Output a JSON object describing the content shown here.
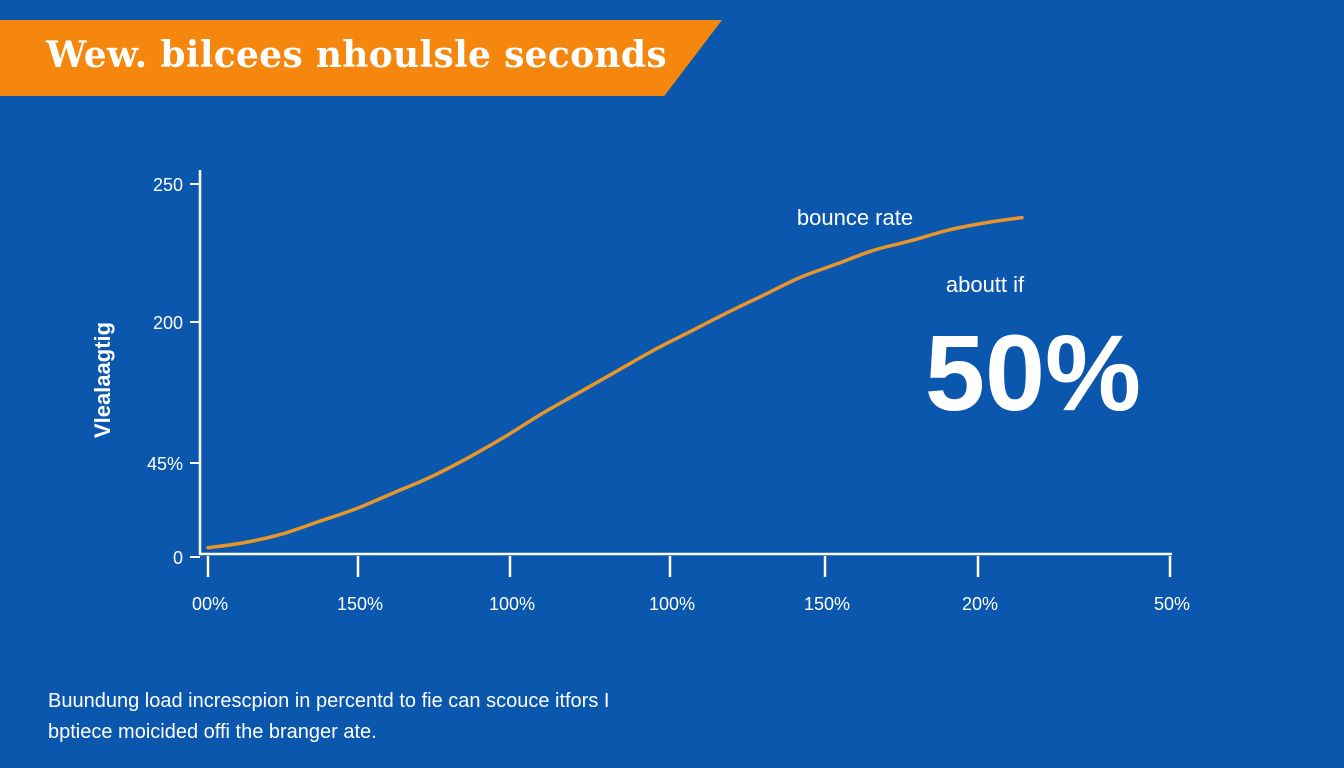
{
  "banner": {
    "title": "Wew. bilcees nhoulsle seconds",
    "color": "#f5870f"
  },
  "caption": {
    "line1": "Buundung load increscpion in percentd to fie can scouce itfors I",
    "line2": "bptiece moicided offi the branger ate."
  },
  "chart_data": {
    "type": "line",
    "title": "Wew. bilcees nhoulsle seconds",
    "xlabel": "",
    "ylabel": "Vlealaagtig",
    "x_tick_labels": [
      "00%",
      "150%",
      "100%",
      "100%",
      "150%",
      "20%",
      "50%"
    ],
    "y_tick_labels": [
      "0",
      "45%",
      "200",
      "250"
    ],
    "grid": false,
    "background_color": "#0a57ad",
    "series": [
      {
        "name": "bounce rate",
        "color": "#e8962a",
        "x": [
          0,
          0.5,
          1,
          1.5,
          2,
          2.5,
          3,
          3.5,
          4,
          4.5,
          5,
          5.5,
          6,
          6.5,
          7,
          7.5,
          8,
          8.5,
          9,
          9.5,
          10,
          10.5,
          11
        ],
        "y": [
          0.05,
          0.1,
          0.18,
          0.3,
          0.42,
          0.57,
          0.72,
          0.9,
          1.1,
          1.32,
          1.52,
          1.72,
          1.92,
          2.1,
          2.28,
          2.45,
          2.62,
          2.75,
          2.88,
          2.97,
          3.07,
          3.14,
          3.19
        ]
      }
    ],
    "xlim": [
      0,
      13
    ],
    "ylim": [
      0,
      3.5
    ],
    "annotations": [
      {
        "label": "bounce rate"
      },
      {
        "label": "aboutt if"
      },
      {
        "label": "50%"
      }
    ]
  }
}
